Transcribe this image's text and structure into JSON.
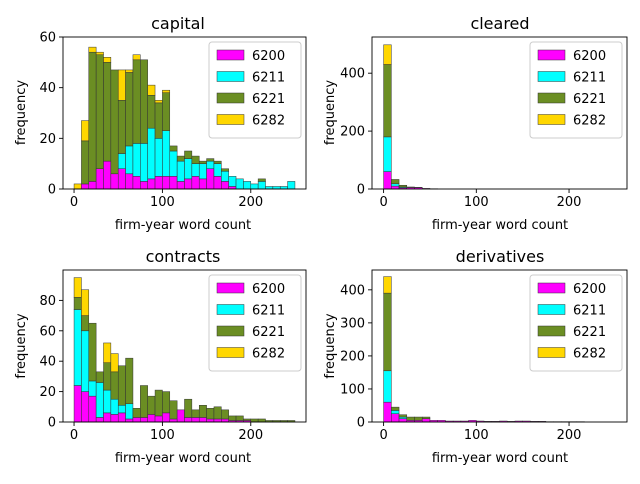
{
  "colors": {
    "6200": "#ff00ff",
    "6211": "#00ffff",
    "6221": "#6b8e23",
    "6282": "#ffd700"
  },
  "chart_data": [
    {
      "type": "bar",
      "stacked": true,
      "title": "capital",
      "xlabel": "firm-year word count",
      "ylabel": "frequency",
      "bin_width": 8.333,
      "xlim": [
        -12.5,
        262.5
      ],
      "ylim": [
        0,
        60
      ],
      "xticks": [
        0,
        100,
        200
      ],
      "yticks": [
        0,
        20,
        40,
        60
      ],
      "legend_position": "top-right",
      "legend": [
        "6200",
        "6211",
        "6221",
        "6282"
      ],
      "bin_starts": [
        0,
        8.333,
        16.667,
        25,
        33.333,
        41.667,
        50,
        58.333,
        66.667,
        75,
        83.333,
        91.667,
        100,
        108.333,
        116.667,
        125,
        133.333,
        141.667,
        150,
        158.333,
        166.667,
        175,
        183.333,
        191.667,
        200,
        208.333,
        216.667,
        225,
        233.333,
        241.667
      ],
      "series": [
        {
          "name": "6200",
          "values": [
            0,
            2,
            3,
            8,
            11,
            6,
            8,
            6,
            5,
            3,
            4,
            5,
            5,
            5,
            3,
            4,
            5,
            4,
            8,
            5,
            3,
            1,
            0,
            0,
            0,
            0,
            0,
            0,
            0,
            0
          ]
        },
        {
          "name": "6211",
          "values": [
            0,
            0,
            0,
            0,
            0,
            0,
            6,
            11,
            13,
            15,
            20,
            15,
            18,
            10,
            8,
            8,
            5,
            6,
            3,
            5,
            4,
            4,
            4,
            3,
            2,
            3,
            1,
            1,
            1,
            3
          ]
        },
        {
          "name": "6221",
          "values": [
            0,
            17,
            51,
            45,
            39,
            41,
            21,
            29,
            33,
            33,
            13,
            14,
            15,
            2,
            2,
            3,
            3,
            1,
            1,
            1,
            1,
            0,
            0,
            0,
            0,
            1,
            0,
            0,
            0,
            0
          ]
        },
        {
          "name": "6282",
          "values": [
            2,
            8,
            2,
            1,
            2,
            0,
            12,
            1,
            2,
            0,
            4,
            1,
            1,
            0,
            0,
            0,
            0,
            0,
            0,
            0,
            0,
            0,
            0,
            0,
            0,
            0,
            0,
            0,
            0,
            0
          ]
        }
      ]
    },
    {
      "type": "bar",
      "stacked": true,
      "title": "cleared",
      "xlabel": "firm-year word count",
      "ylabel": "frequency",
      "bin_width": 8.333,
      "xlim": [
        -12.5,
        262.5
      ],
      "ylim": [
        0,
        525
      ],
      "xticks": [
        0,
        100,
        200
      ],
      "yticks": [
        0,
        200,
        400
      ],
      "legend_position": "top-right",
      "legend": [
        "6200",
        "6211",
        "6221",
        "6282"
      ],
      "bin_starts": [
        0,
        8.333,
        16.667,
        25,
        33.333,
        41.667,
        50,
        58.333,
        66.667,
        75,
        83.333,
        91.667,
        100,
        108.333,
        116.667,
        125,
        133.333,
        141.667,
        150,
        158.333,
        166.667,
        175,
        183.333,
        191.667,
        200,
        208.333,
        216.667,
        225,
        233.333,
        241.667
      ],
      "series": [
        {
          "name": "6200",
          "values": [
            60,
            10,
            4,
            5,
            5,
            2,
            1,
            0,
            0,
            0,
            0,
            0,
            0,
            0,
            0,
            0,
            0,
            0,
            0,
            0,
            0,
            0,
            0,
            0,
            0,
            0,
            0,
            0,
            0,
            0
          ]
        },
        {
          "name": "6211",
          "values": [
            120,
            8,
            3,
            0,
            0,
            0,
            0,
            0,
            0,
            0,
            0,
            0,
            0,
            0,
            0,
            0,
            0,
            0,
            0,
            0,
            0,
            0,
            0,
            0,
            0,
            0,
            0,
            0,
            0,
            0
          ]
        },
        {
          "name": "6221",
          "values": [
            250,
            15,
            6,
            2,
            1,
            0,
            0,
            0,
            0,
            0,
            0,
            0,
            0,
            0,
            0,
            0,
            0,
            0,
            0,
            0,
            0,
            0,
            0,
            0,
            0,
            0,
            0,
            0,
            0,
            0
          ]
        },
        {
          "name": "6282",
          "values": [
            68,
            0,
            0,
            0,
            0,
            0,
            0,
            0,
            0,
            0,
            0,
            0,
            0,
            0,
            0,
            0,
            0,
            0,
            0,
            0,
            0,
            0,
            0,
            0,
            0,
            0,
            0,
            0,
            0,
            0
          ]
        }
      ]
    },
    {
      "type": "bar",
      "stacked": true,
      "title": "contracts",
      "xlabel": "firm-year word count",
      "ylabel": "frequency",
      "bin_width": 8.333,
      "xlim": [
        -12.5,
        262.5
      ],
      "ylim": [
        0,
        100
      ],
      "xticks": [
        0,
        100,
        200
      ],
      "yticks": [
        0,
        20,
        40,
        60,
        80
      ],
      "legend_position": "top-right",
      "legend": [
        "6200",
        "6211",
        "6221",
        "6282"
      ],
      "bin_starts": [
        0,
        8.333,
        16.667,
        25,
        33.333,
        41.667,
        50,
        58.333,
        66.667,
        75,
        83.333,
        91.667,
        100,
        108.333,
        116.667,
        125,
        133.333,
        141.667,
        150,
        158.333,
        166.667,
        175,
        183.333,
        191.667,
        200,
        208.333,
        216.667,
        225,
        233.333,
        241.667
      ],
      "series": [
        {
          "name": "6200",
          "values": [
            24,
            20,
            17,
            3,
            6,
            5,
            6,
            2,
            3,
            3,
            5,
            4,
            6,
            2,
            8,
            3,
            3,
            3,
            2,
            2,
            2,
            1,
            1,
            1,
            0,
            0,
            0,
            0,
            0,
            0
          ]
        },
        {
          "name": "6211",
          "values": [
            50,
            40,
            10,
            23,
            15,
            10,
            5,
            10,
            0,
            0,
            0,
            0,
            0,
            0,
            0,
            0,
            0,
            0,
            0,
            0,
            0,
            0,
            0,
            0,
            0,
            0,
            0,
            0,
            0,
            0
          ]
        },
        {
          "name": "6221",
          "values": [
            8,
            10,
            38,
            7,
            18,
            18,
            26,
            30,
            6,
            21,
            12,
            17,
            14,
            12,
            0,
            12,
            5,
            8,
            7,
            8,
            6,
            3,
            3,
            1,
            2,
            2,
            1,
            1,
            1,
            1
          ]
        },
        {
          "name": "6282",
          "values": [
            13,
            17,
            0,
            0,
            13,
            12,
            0,
            0,
            0,
            0,
            0,
            0,
            0,
            0,
            0,
            0,
            0,
            0,
            0,
            0,
            0,
            0,
            0,
            0,
            0,
            0,
            0,
            0,
            0,
            0
          ]
        }
      ]
    },
    {
      "type": "bar",
      "stacked": true,
      "title": "derivatives",
      "xlabel": "firm-year word count",
      "ylabel": "frequency",
      "bin_width": 8.333,
      "xlim": [
        -12.5,
        262.5
      ],
      "ylim": [
        0,
        460
      ],
      "xticks": [
        0,
        100,
        200
      ],
      "yticks": [
        0,
        100,
        200,
        300,
        400
      ],
      "legend_position": "top-right",
      "legend": [
        "6200",
        "6211",
        "6221",
        "6282"
      ],
      "bin_starts": [
        0,
        8.333,
        16.667,
        25,
        33.333,
        41.667,
        50,
        58.333,
        66.667,
        75,
        83.333,
        91.667,
        100,
        108.333,
        116.667,
        125,
        133.333,
        141.667,
        150,
        158.333,
        166.667,
        175,
        183.333,
        191.667,
        200,
        208.333,
        216.667,
        225,
        233.333,
        241.667
      ],
      "series": [
        {
          "name": "6200",
          "values": [
            60,
            25,
            10,
            5,
            5,
            10,
            5,
            5,
            3,
            3,
            3,
            5,
            3,
            2,
            2,
            3,
            2,
            3,
            3,
            2,
            2,
            1,
            1,
            1,
            1,
            1,
            0,
            0,
            0,
            0
          ]
        },
        {
          "name": "6211",
          "values": [
            95,
            10,
            5,
            0,
            0,
            0,
            0,
            0,
            0,
            0,
            0,
            0,
            0,
            0,
            0,
            0,
            0,
            0,
            0,
            0,
            0,
            0,
            0,
            0,
            0,
            0,
            0,
            0,
            0,
            0
          ]
        },
        {
          "name": "6221",
          "values": [
            235,
            10,
            7,
            10,
            10,
            5,
            0,
            0,
            0,
            0,
            0,
            0,
            0,
            0,
            0,
            0,
            0,
            0,
            0,
            0,
            0,
            0,
            0,
            0,
            0,
            0,
            0,
            0,
            0,
            0
          ]
        },
        {
          "name": "6282",
          "values": [
            50,
            0,
            0,
            0,
            0,
            0,
            0,
            0,
            0,
            0,
            0,
            0,
            0,
            0,
            0,
            0,
            0,
            0,
            0,
            0,
            0,
            0,
            0,
            0,
            0,
            0,
            0,
            0,
            0,
            0
          ]
        }
      ]
    }
  ]
}
